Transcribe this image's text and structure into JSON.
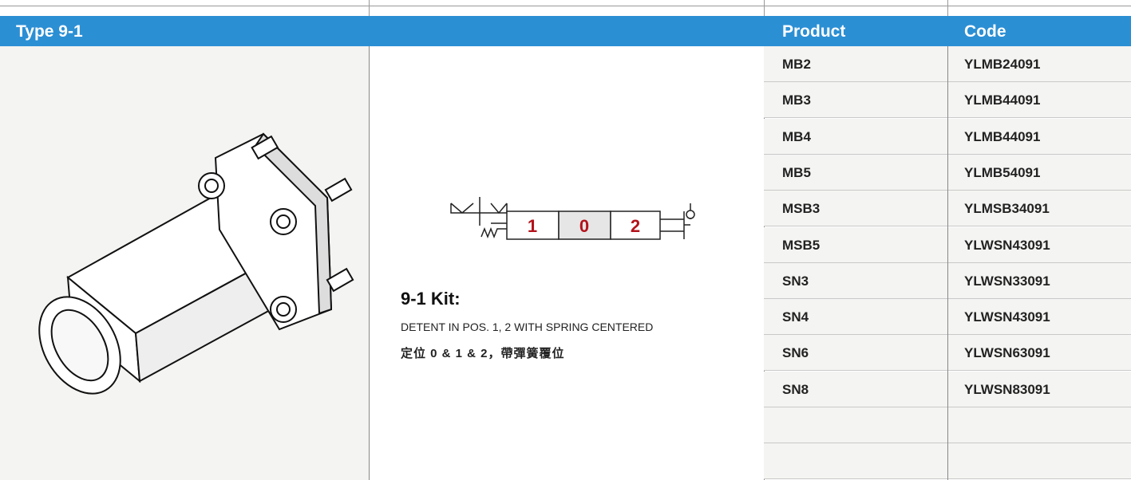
{
  "header": {
    "title": "Type 9-1",
    "columns": [
      "Product",
      "Code"
    ]
  },
  "table": {
    "rows": [
      [
        "MB2",
        "YLMB24091"
      ],
      [
        "MB3",
        "YLMB44091"
      ],
      [
        "MB4",
        "YLMB44091"
      ],
      [
        "MB5",
        "YLMB54091"
      ],
      [
        "MSB3",
        "YLMSB34091"
      ],
      [
        "MSB5",
        "YLWSN43091"
      ],
      [
        "SN3",
        "YLWSN33091"
      ],
      [
        "SN4",
        "YLWSN43091"
      ],
      [
        "SN6",
        "YLWSN63091"
      ],
      [
        "SN8",
        "YLWSN83091"
      ]
    ]
  },
  "symbol": {
    "positions": [
      "1",
      "0",
      "2"
    ]
  },
  "kit": {
    "title": "9-1 Kit:",
    "description": "DETENT IN POS. 1, 2 WITH SPRING CENTERED",
    "description_zh": "定位 0 & 1 & 2，帶彈簧覆位"
  }
}
